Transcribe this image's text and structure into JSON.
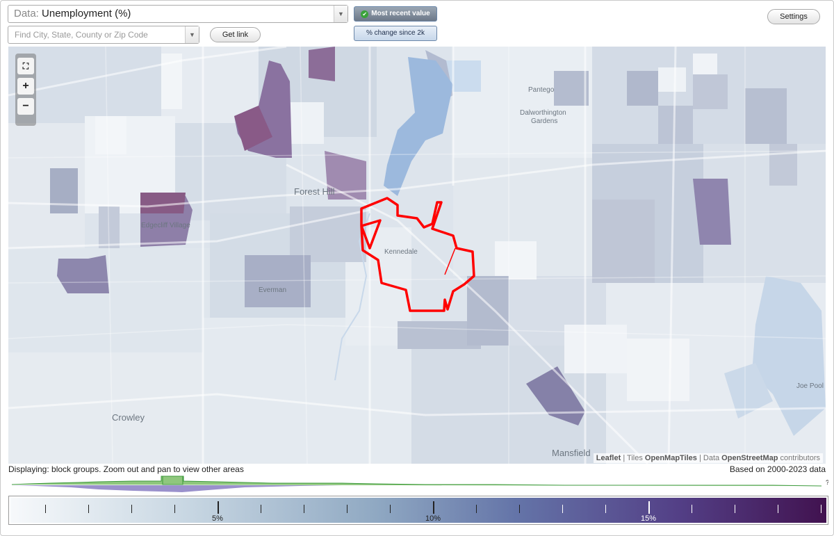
{
  "controls": {
    "data_prefix": "Data:",
    "data_value": "Unemployment (%)",
    "search_placeholder": "Find City, State, County or Zip Code",
    "get_link": "Get link",
    "settings": "Settings",
    "toggle_recent": "Most recent value",
    "toggle_change": "% change since 2k"
  },
  "map": {
    "zoom_extent_icon": "fullscreen-icon",
    "zoom_in": "+",
    "zoom_out": "−",
    "labels": {
      "forest_hill": "Forest Hill",
      "edgecliff": "Edgecliff Village",
      "kennedale": "Kennedale",
      "everman": "Everman",
      "crowley": "Crowley",
      "mansfield": "Mansfield",
      "pantego": "Pantego",
      "dalworthington_1": "Dalworthington",
      "dalworthington_2": "Gardens",
      "joe_pool": "Joe Pool L"
    },
    "attribution": {
      "leaflet": "Leaflet",
      "sep1": " | Tiles ",
      "tiles": "OpenMapTiles",
      "sep2": " | Data ",
      "osm": "OpenStreetMap",
      "contrib": " contributors"
    }
  },
  "status": {
    "displaying": "Displaying: block groups. Zoom out and pan to view other areas",
    "based_on": "Based on 2000-2023 data",
    "question_mark": "?"
  },
  "legend": {
    "label_5": "5%",
    "label_10": "10%",
    "label_15": "15%"
  },
  "colors": {
    "selection_outline": "#ff0000",
    "histogram_green": "#7fbf6a",
    "histogram_purple": "#8b82c4"
  }
}
